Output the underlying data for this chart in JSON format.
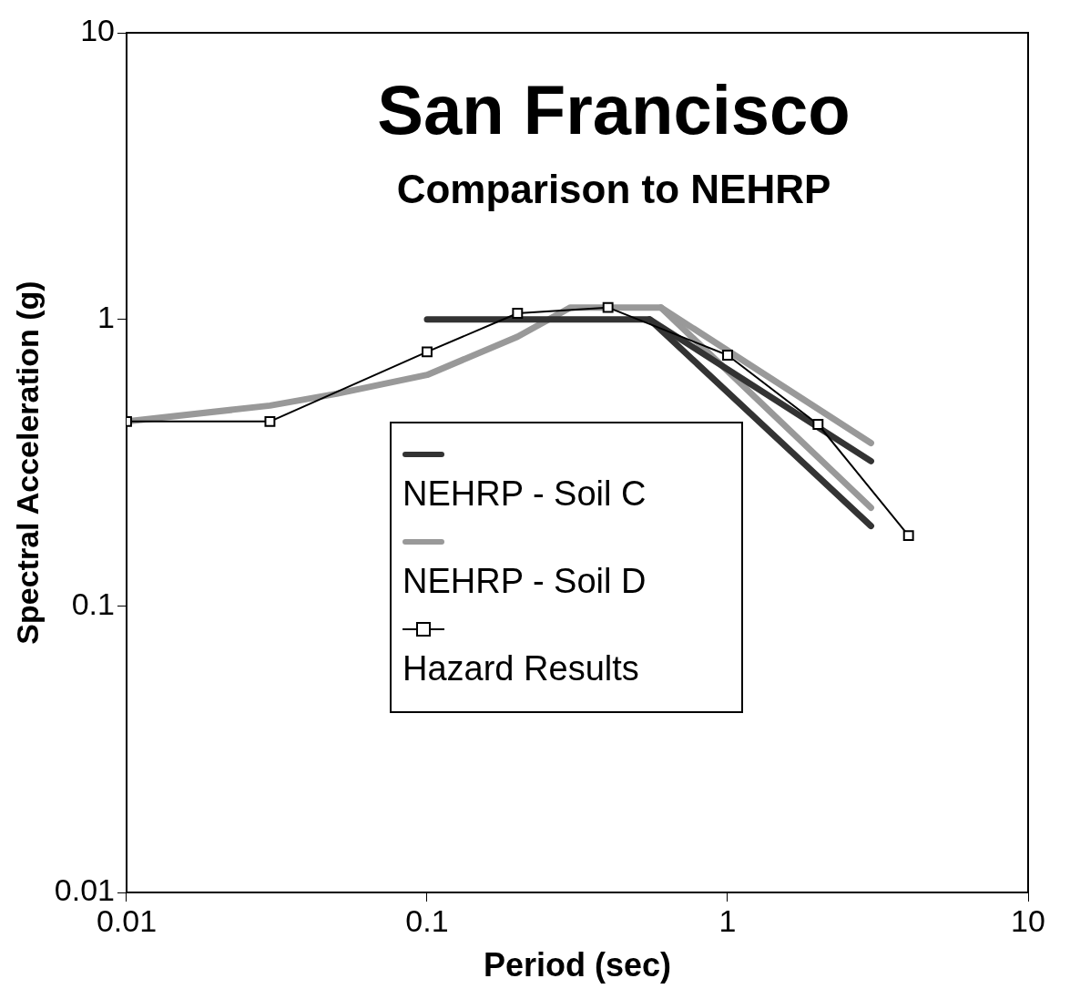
{
  "chart_data": {
    "type": "line",
    "title": "San Francisco",
    "subtitle": "Comparison to NEHRP",
    "xlabel": "Period (sec)",
    "ylabel": "Spectral Acceleration (g)",
    "log": "xy",
    "xlim": [
      0.01,
      10
    ],
    "xticks": [
      0.01,
      0.1,
      1,
      10
    ],
    "ylim": [
      0.01,
      10
    ],
    "yticks": [
      0.01,
      0.1,
      1,
      10
    ],
    "grid": false,
    "legend": "bottom left",
    "series": [
      {
        "name": "NEHRP - Soil C",
        "color": "#333333",
        "x": [
          0.1,
          0.55,
          3
        ],
        "values": [
          1,
          1,
          0.19
        ],
        "marker": "none"
      },
      {
        "color": "#333333",
        "x": [
          0.55,
          3
        ],
        "values": [
          1,
          0.32
        ],
        "marker": "none"
      },
      {
        "name": "NEHRP - Soil D",
        "color": "#999999",
        "x": [
          0.01,
          0.03,
          0.05,
          0.1,
          0.2,
          0.3,
          0.6,
          3
        ],
        "values": [
          0.44,
          0.5,
          0.55,
          0.64,
          0.87,
          1.1,
          1.1,
          0.37
        ],
        "marker": "none"
      },
      {
        "color": "#999999",
        "x": [
          0.6,
          3
        ],
        "values": [
          1.1,
          0.22
        ],
        "marker": "none"
      },
      {
        "name": "Hazard Results",
        "color": "#000000",
        "x": [
          0.01,
          0.03,
          0.1,
          0.2,
          0.4,
          1,
          2,
          4
        ],
        "values": [
          0.44,
          0.44,
          0.77,
          1.05,
          1.1,
          0.75,
          0.43,
          0.176
        ],
        "marker": "square"
      }
    ]
  }
}
